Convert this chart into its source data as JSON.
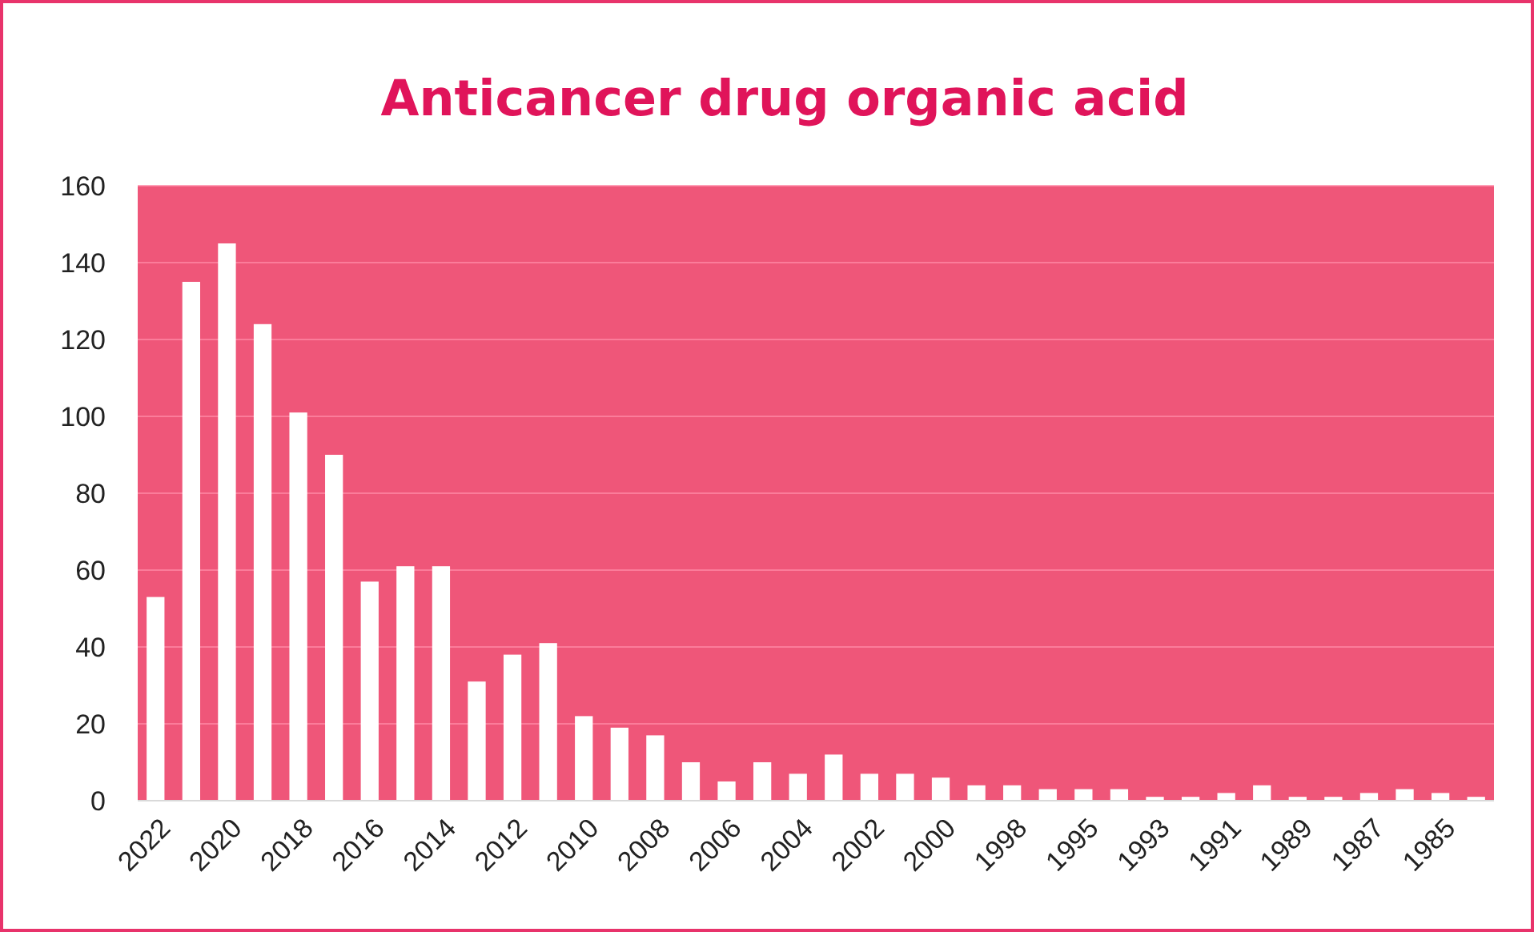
{
  "chart_data": {
    "type": "bar",
    "title": "Anticancer drug organic acid",
    "categories": [
      "2022",
      null,
      "2020",
      null,
      "2018",
      null,
      "2016",
      null,
      "2014",
      null,
      "2012",
      null,
      "2010",
      null,
      "2008",
      null,
      "2006",
      null,
      "2004",
      null,
      "2002",
      null,
      "2000",
      null,
      "1998",
      null,
      "1995",
      null,
      "1993",
      null,
      "1991",
      null,
      "1989",
      null,
      "1987",
      null,
      "1985",
      null
    ],
    "values": [
      53,
      135,
      145,
      124,
      101,
      90,
      57,
      61,
      61,
      31,
      38,
      41,
      22,
      19,
      17,
      10,
      5,
      10,
      7,
      12,
      7,
      7,
      6,
      4,
      4,
      3,
      3,
      3,
      1,
      1,
      2,
      4,
      1,
      1,
      2,
      3,
      2,
      1
    ],
    "color": "#ffffff",
    "ylim": [
      0,
      160
    ],
    "yticks": [
      0,
      20,
      40,
      60,
      80,
      100,
      120,
      140,
      160
    ],
    "grid": "y"
  }
}
